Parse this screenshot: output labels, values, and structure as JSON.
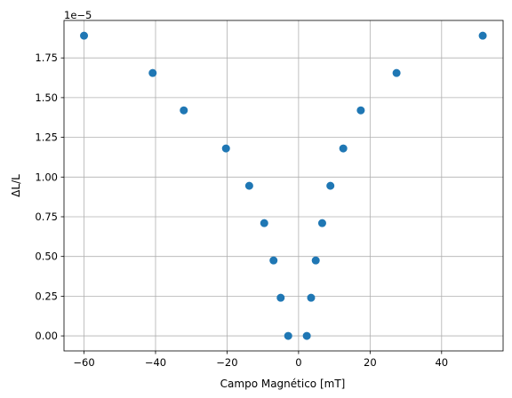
{
  "chart_data": {
    "type": "scatter",
    "title": "",
    "xlabel": "Campo Magnético [mT]",
    "ylabel": "ΔL/L",
    "y_offset_text": "1e−5",
    "xlim": [
      -65.6,
      57.2
    ],
    "ylim": [
      -0.0946,
      1.986
    ],
    "x_ticks": [
      -60,
      -40,
      -20,
      0,
      20,
      40
    ],
    "x_tick_labels": [
      "−60",
      "−40",
      "−20",
      "0",
      "20",
      "40"
    ],
    "y_ticks": [
      0,
      0.25,
      0.5,
      0.75,
      1.0,
      1.25,
      1.5,
      1.75
    ],
    "y_tick_labels": [
      "0.00",
      "0.25",
      "0.50",
      "0.75",
      "1.00",
      "1.25",
      "1.50",
      "1.75"
    ],
    "grid": true,
    "marker_color": "#1f77b4",
    "series": [
      {
        "x": [
          -60.0,
          -40.8,
          -32.1,
          -20.3,
          -13.8,
          -9.6,
          -7.0,
          -5.0,
          -2.9,
          2.3,
          3.5,
          4.8,
          6.6,
          8.9,
          12.5,
          17.4,
          27.4,
          51.5
        ],
        "y": [
          1.89,
          1.655,
          1.42,
          1.18,
          0.945,
          0.71,
          0.475,
          0.24,
          0.0,
          0.0,
          0.24,
          0.475,
          0.71,
          0.945,
          1.18,
          1.42,
          1.655,
          1.89
        ]
      }
    ]
  }
}
